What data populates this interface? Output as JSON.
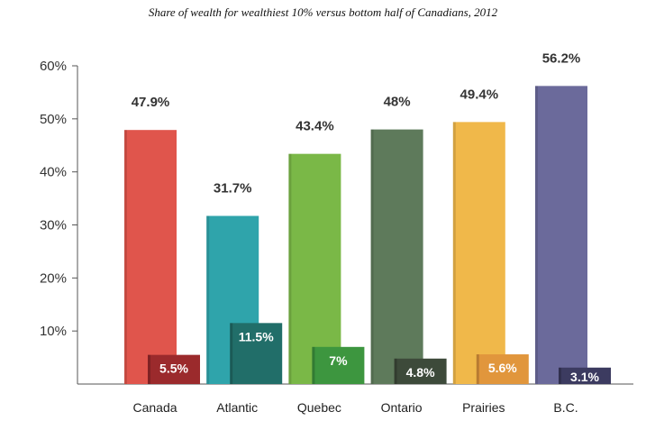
{
  "chart_data": {
    "type": "bar",
    "title": "Share of wealth for wealthiest 10% versus bottom half of Canadians, 2012",
    "categories": [
      "Canada",
      "Atlantic",
      "Quebec",
      "Ontario",
      "Prairies",
      "B.C."
    ],
    "ylim": [
      0,
      60
    ],
    "y_ticks": [
      "10%",
      "20%",
      "30%",
      "40%",
      "50%",
      "60%"
    ],
    "grid": false,
    "series": [
      {
        "values": [
          47.9,
          31.7,
          43.4,
          48,
          49.4,
          56.2
        ],
        "data_labels": [
          "47.9%",
          "31.7%",
          "43.4%",
          "48%",
          "49.4%",
          "56.2%"
        ],
        "colors": [
          "#e0554c",
          "#2fa4ab",
          "#7ab847",
          "#5e7a5b",
          "#f0b84a",
          "#6b6a9b"
        ]
      },
      {
        "values": [
          5.5,
          11.5,
          7,
          4.8,
          5.6,
          3.1
        ],
        "data_labels": [
          "5.5%",
          "11.5%",
          "7%",
          "4.8%",
          "5.6%",
          "3.1%"
        ],
        "colors": [
          "#9b2a2c",
          "#216e69",
          "#3d963f",
          "#3d4a3a",
          "#e1963c",
          "#3c3b60"
        ]
      }
    ]
  }
}
